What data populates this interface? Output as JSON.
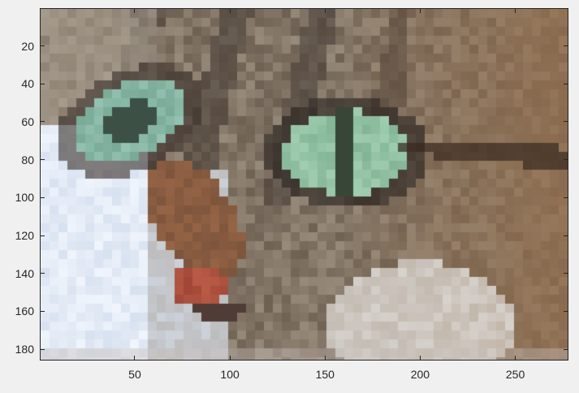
{
  "figure": {
    "image_subject": "cat face close-up (pixelated)",
    "image_extent": {
      "x": [
        0.5,
        277.5
      ],
      "y": [
        0.5,
        185.5
      ]
    },
    "y_axis_direction": "reversed",
    "axes_color": "#262626",
    "background_color": "#f0f0f0"
  },
  "axes": {
    "x_ticks": [
      {
        "value": 50,
        "label": "50"
      },
      {
        "value": 100,
        "label": "100"
      },
      {
        "value": 150,
        "label": "150"
      },
      {
        "value": 200,
        "label": "200"
      },
      {
        "value": 250,
        "label": "250"
      }
    ],
    "y_ticks": [
      {
        "value": 20,
        "label": "20"
      },
      {
        "value": 40,
        "label": "40"
      },
      {
        "value": 60,
        "label": "60"
      },
      {
        "value": 80,
        "label": "80"
      },
      {
        "value": 100,
        "label": "100"
      },
      {
        "value": 120,
        "label": "120"
      },
      {
        "value": 140,
        "label": "140"
      },
      {
        "value": 160,
        "label": "160"
      },
      {
        "value": 180,
        "label": "180"
      }
    ]
  }
}
